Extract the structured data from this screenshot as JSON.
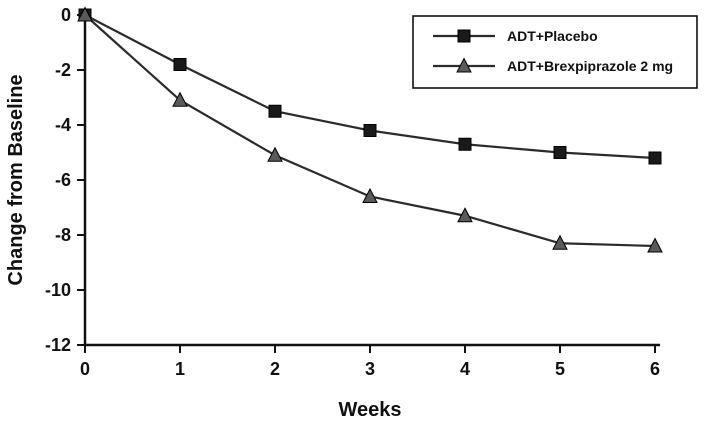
{
  "chart_data": {
    "type": "line",
    "title": "",
    "xlabel": "Weeks",
    "ylabel": "Change from Baseline",
    "x": [
      0,
      1,
      2,
      3,
      4,
      5,
      6
    ],
    "series": [
      {
        "name": "ADT+Placebo",
        "marker": "square",
        "marker_color": "#1a1a1a",
        "line_color": "#2b2b2b",
        "values": [
          0,
          -1.8,
          -3.5,
          -4.2,
          -4.7,
          -5.0,
          -5.2
        ]
      },
      {
        "name": "ADT+Brexpiprazole 2 mg",
        "marker": "triangle",
        "marker_color": "#5a5a5a",
        "line_color": "#2b2b2b",
        "values": [
          0,
          -3.1,
          -5.1,
          -6.6,
          -7.3,
          -8.3,
          -8.4
        ]
      }
    ],
    "xlim": [
      0,
      6
    ],
    "ylim": [
      -12,
      0
    ],
    "xticks": [
      0,
      1,
      2,
      3,
      4,
      5,
      6
    ],
    "yticks": [
      0,
      -2,
      -4,
      -6,
      -8,
      -10,
      -12
    ],
    "grid": false,
    "legend_position": "top-right",
    "axis_color": "#111111",
    "background_color": "#ffffff"
  }
}
